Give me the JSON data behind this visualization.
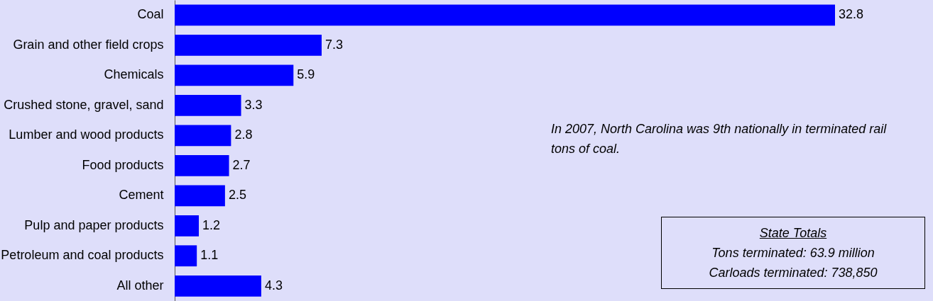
{
  "chart_data": {
    "type": "bar",
    "orientation": "horizontal",
    "data_labels": true,
    "color": "#0000ff",
    "categories": [
      "Coal",
      "Grain and other field crops",
      "Chemicals",
      "Crushed stone, gravel, sand",
      "Lumber and wood products",
      "Food products",
      "Cement",
      "Pulp and paper products",
      "Petroleum and coal products",
      "All other"
    ],
    "values": [
      32.8,
      7.3,
      5.9,
      3.3,
      2.8,
      2.7,
      2.5,
      1.2,
      1.1,
      4.3
    ],
    "annotations": [
      "In 2007, North Carolina was 9th nationally in terminated rail tons of coal.",
      "State Totals",
      "Tons terminated:  63.9 million",
      "Carloads terminated:  738,850"
    ]
  }
}
